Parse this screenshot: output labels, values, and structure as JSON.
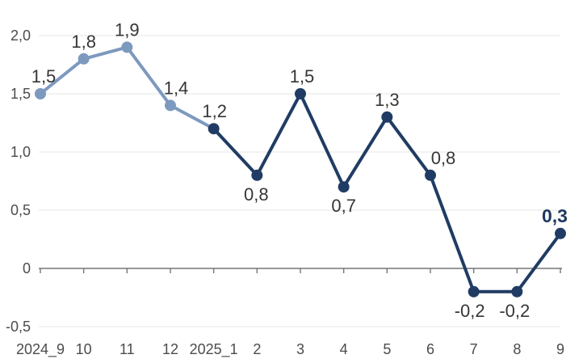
{
  "chart_data": {
    "type": "line",
    "title": "",
    "xlabel": "",
    "ylabel": "",
    "legend": "none",
    "grid": "horizontal",
    "categories": [
      "2024_9",
      "10",
      "11",
      "12",
      "2025_1",
      "2",
      "3",
      "4",
      "5",
      "6",
      "7",
      "8",
      "9"
    ],
    "values": [
      1.5,
      1.8,
      1.9,
      1.4,
      1.2,
      0.8,
      1.5,
      0.7,
      1.3,
      0.8,
      -0.2,
      -0.2,
      0.3
    ],
    "value_labels": [
      "1,5",
      "1,8",
      "1,9",
      "1,4",
      "1,2",
      "0,8",
      "1,5",
      "0,7",
      "1,3",
      "0,8",
      "-0,2",
      "-0,2",
      "0,3"
    ],
    "yticks": [
      {
        "label": "2,0",
        "value": 2.0
      },
      {
        "label": "1,5",
        "value": 1.5
      },
      {
        "label": "1,0",
        "value": 1.0
      },
      {
        "label": "0,5",
        "value": 0.5
      },
      {
        "label": "0",
        "value": 0.0
      },
      {
        "label": "-0,5",
        "value": -0.5
      }
    ],
    "ylim": [
      -0.5,
      2.0
    ],
    "light_point_count": 4,
    "label_layout": [
      {
        "side": "above",
        "dx": 4
      },
      {
        "side": "above",
        "dx": 0
      },
      {
        "side": "above",
        "dx": 0
      },
      {
        "side": "above",
        "dx": 7
      },
      {
        "side": "above",
        "dx": 1
      },
      {
        "side": "below",
        "dx": -1
      },
      {
        "side": "above",
        "dx": 2
      },
      {
        "side": "below",
        "dx": 0
      },
      {
        "side": "above",
        "dx": 0
      },
      {
        "side": "above",
        "dx": 16
      },
      {
        "side": "below",
        "dx": -5
      },
      {
        "side": "below",
        "dx": -3
      },
      {
        "side": "above",
        "dx": -7
      }
    ],
    "colors": {
      "line_light": "#7D99BE",
      "line_dark": "#203C64",
      "grid": "#E9E9E9",
      "axis": "#757575",
      "data_label": "#363636",
      "data_label_final": "#1F3A5F",
      "axis_label": "#4C4C4C"
    }
  }
}
